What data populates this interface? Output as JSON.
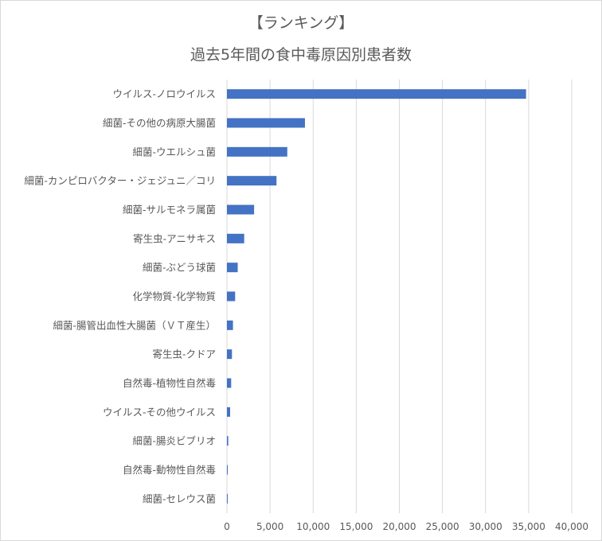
{
  "chart_data": {
    "type": "bar",
    "orientation": "horizontal",
    "title": "【ランキング】",
    "subtitle": "過去5年間の食中毒原因別患者数",
    "xlabel": "",
    "ylabel": "",
    "xlim": [
      0,
      40000
    ],
    "xticks": [
      "0",
      "5,000",
      "10,000",
      "15,000",
      "20,000",
      "25,000",
      "30,000",
      "35,000",
      "40,000"
    ],
    "grid": true,
    "color": "#4472c4",
    "categories": [
      "ウイルス-ノロウイルス",
      "細菌-その他の病原大腸菌",
      "細菌-ウエルシュ菌",
      "細菌-カンピロバクター・ジェジュニ／コリ",
      "細菌-サルモネラ属菌",
      "寄生虫-アニサキス",
      "細菌-ぶどう球菌",
      "化学物質-化学物質",
      "細菌-腸管出血性大腸菌（ＶＴ産生）",
      "寄生虫-クドア",
      "自然毒-植物性自然毒",
      "ウイルス-その他ウイルス",
      "細菌-腸炎ビブリオ",
      "自然毒-動物性自然毒",
      "細菌-セレウス菌"
    ],
    "values": [
      34700,
      9050,
      7000,
      5750,
      3150,
      2000,
      1250,
      950,
      700,
      580,
      490,
      370,
      150,
      70,
      60
    ]
  }
}
